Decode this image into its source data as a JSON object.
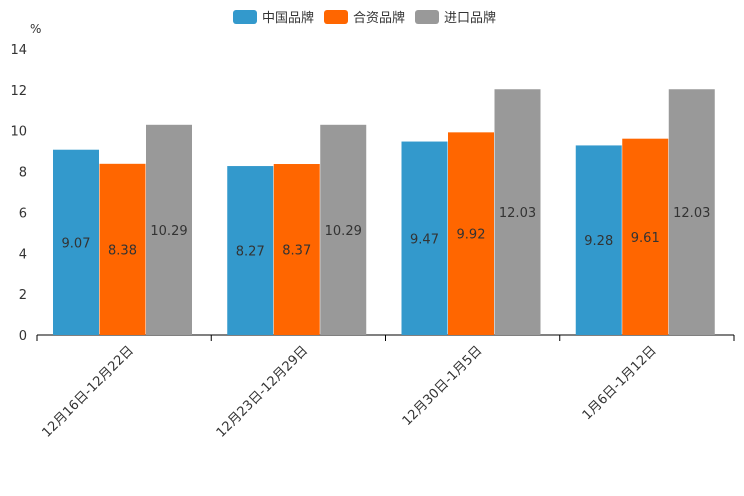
{
  "chart_data": {
    "type": "bar",
    "title": "",
    "ylabel": "%",
    "xlabel": "",
    "ylim": [
      0,
      14
    ],
    "yticks": [
      0,
      2,
      4,
      6,
      8,
      10,
      12,
      14
    ],
    "categories": [
      "12月16日-12月22日",
      "12月23日-12月29日",
      "12月30日-1月5日",
      "1月6日-1月12日"
    ],
    "series": [
      {
        "name": "中国品牌",
        "color": "#3399cc",
        "values": [
          9.07,
          8.27,
          9.47,
          9.28
        ]
      },
      {
        "name": "合资品牌",
        "color": "#ff6600",
        "values": [
          8.38,
          8.37,
          9.92,
          9.61
        ]
      },
      {
        "name": "进口品牌",
        "color": "#999999",
        "values": [
          10.29,
          10.29,
          12.03,
          12.03
        ]
      }
    ],
    "legend_position": "top-center"
  }
}
